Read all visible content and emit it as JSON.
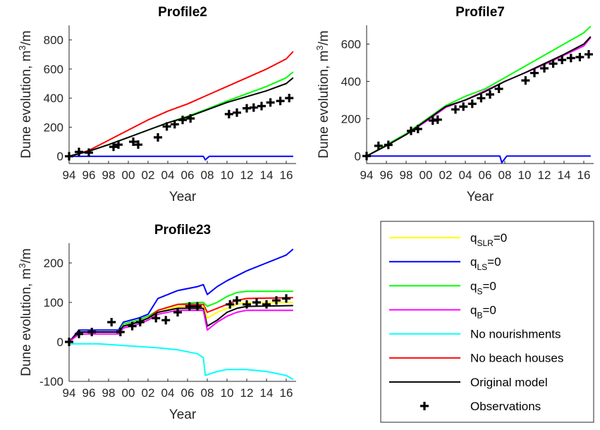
{
  "chart_data": [
    {
      "type": "line",
      "title": "Profile2",
      "xlabel": "Year",
      "ylabel_parts": {
        "main": "Dune evolution, m",
        "sup": "3",
        "tail": "/m"
      },
      "xlim": [
        1994,
        2017
      ],
      "ylim": [
        -50,
        900
      ],
      "yticks": [
        0,
        200,
        400,
        600,
        800
      ],
      "xticks": [
        1994,
        1996,
        1998,
        2000,
        2002,
        2004,
        2006,
        2008,
        2010,
        2012,
        2014,
        2016
      ],
      "xtick_labels": [
        "94",
        "96",
        "98",
        "00",
        "02",
        "04",
        "06",
        "08",
        "10",
        "12",
        "14",
        "16"
      ],
      "series": [
        {
          "key": "sa",
          "color": "#ff0000",
          "x": [
            1994,
            1996,
            1998,
            2000,
            2002,
            2004,
            2006,
            2008,
            2010,
            2012,
            2014,
            2016,
            2016.7
          ],
          "y": [
            0,
            40,
            110,
            180,
            250,
            310,
            360,
            420,
            480,
            540,
            600,
            670,
            720
          ]
        },
        {
          "key": "sb",
          "color": "#00ff00",
          "x": [
            1994,
            1996,
            1998,
            2000,
            2002,
            2004,
            2006,
            2008,
            2010,
            2012,
            2014,
            2016,
            2016.7
          ],
          "y": [
            0,
            35,
            80,
            130,
            180,
            230,
            275,
            325,
            380,
            430,
            480,
            540,
            580
          ]
        },
        {
          "key": "sc",
          "color": "#000000",
          "x": [
            1994,
            1996,
            1998,
            2000,
            2002,
            2004,
            2006,
            2008,
            2010,
            2012,
            2014,
            2016,
            2016.7
          ],
          "y": [
            0,
            35,
            80,
            130,
            180,
            230,
            270,
            320,
            370,
            410,
            450,
            500,
            540
          ]
        },
        {
          "key": "sd",
          "color": "#0000ff",
          "x": [
            1994,
            2000,
            2007.6,
            2007.8,
            2008.2,
            2012,
            2016.7
          ],
          "y": [
            0,
            0,
            0,
            -25,
            0,
            0,
            0
          ]
        }
      ],
      "observations": {
        "x": [
          1994,
          1995,
          1996,
          1998.5,
          1999,
          2000.5,
          2001,
          2003,
          2003.9,
          2004.7,
          2005.5,
          2006.3,
          2010.2,
          2011,
          2012,
          2012.7,
          2013.5,
          2014.4,
          2015.4,
          2016.3
        ],
        "y": [
          0,
          30,
          25,
          65,
          80,
          100,
          80,
          130,
          205,
          220,
          250,
          260,
          290,
          300,
          330,
          335,
          345,
          370,
          380,
          400
        ]
      }
    },
    {
      "type": "line",
      "title": "Profile7",
      "xlabel": "Year",
      "ylabel_parts": {
        "main": "Dune evolution, m",
        "sup": "3",
        "tail": "/m"
      },
      "xlim": [
        1994,
        2017
      ],
      "ylim": [
        -40,
        700
      ],
      "yticks": [
        0,
        200,
        400,
        600
      ],
      "xticks": [
        1994,
        1996,
        1998,
        2000,
        2002,
        2004,
        2006,
        2008,
        2010,
        2012,
        2014,
        2016
      ],
      "xtick_labels": [
        "94",
        "96",
        "98",
        "00",
        "02",
        "04",
        "06",
        "08",
        "10",
        "12",
        "14",
        "16"
      ],
      "series": [
        {
          "key": "sa",
          "color": "#00ff00",
          "x": [
            1994,
            1996,
            1998,
            2000,
            2002,
            2004,
            2006,
            2008,
            2010,
            2012,
            2014,
            2016,
            2016.7
          ],
          "y": [
            0,
            60,
            120,
            195,
            270,
            320,
            360,
            420,
            480,
            540,
            600,
            660,
            695
          ]
        },
        {
          "key": "sb",
          "color": "#ff00ff",
          "x": [
            1994,
            1996,
            1998,
            2000,
            2002,
            2004,
            2006,
            2008,
            2010,
            2012,
            2014,
            2016,
            2016.7
          ],
          "y": [
            0,
            55,
            115,
            185,
            260,
            300,
            350,
            400,
            445,
            490,
            540,
            590,
            635
          ]
        },
        {
          "key": "sc",
          "color": "#000000",
          "x": [
            1994,
            1996,
            1998,
            2000,
            2002,
            2004,
            2006,
            2008,
            2010,
            2012,
            2014,
            2016,
            2016.7
          ],
          "y": [
            0,
            55,
            115,
            190,
            265,
            300,
            345,
            400,
            445,
            495,
            545,
            600,
            640
          ]
        },
        {
          "key": "sd",
          "color": "#0000ff",
          "x": [
            1994,
            2000,
            2007.5,
            2007.7,
            2008.2,
            2012,
            2016.7
          ],
          "y": [
            0,
            0,
            0,
            -35,
            0,
            0,
            0
          ]
        }
      ],
      "observations": {
        "x": [
          1994,
          1995.2,
          1996.2,
          1998.5,
          1999.2,
          2000.7,
          2001.2,
          2003,
          2003.8,
          2004.7,
          2005.6,
          2006.5,
          2007.4,
          2010.1,
          2011,
          2012,
          2012.9,
          2013.8,
          2014.7,
          2015.6,
          2016.5
        ],
        "y": [
          0,
          55,
          60,
          135,
          145,
          190,
          195,
          250,
          265,
          280,
          310,
          330,
          360,
          405,
          445,
          470,
          495,
          515,
          525,
          530,
          545
        ]
      }
    },
    {
      "type": "line",
      "title": "Profile23",
      "xlabel": "Year",
      "ylabel_parts": {
        "main": "Dune evolution, m",
        "sup": "3",
        "tail": "/m"
      },
      "xlim": [
        1994,
        2017
      ],
      "ylim": [
        -100,
        250
      ],
      "yticks": [
        -100,
        0,
        100,
        200
      ],
      "xticks": [
        1994,
        1996,
        1998,
        2000,
        2002,
        2004,
        2006,
        2008,
        2010,
        2012,
        2014,
        2016
      ],
      "xtick_labels": [
        "94",
        "96",
        "98",
        "00",
        "02",
        "04",
        "06",
        "08",
        "10",
        "12",
        "14",
        "16"
      ],
      "series": [
        {
          "key": "sa",
          "color": "#0000ff",
          "x": [
            1994,
            1995,
            1996.5,
            1999,
            1999.5,
            2001,
            2002,
            2003,
            2005,
            2007,
            2007.6,
            2008,
            2009,
            2010,
            2012,
            2014,
            2016,
            2016.7
          ],
          "y": [
            0,
            30,
            30,
            30,
            50,
            60,
            70,
            110,
            130,
            140,
            145,
            120,
            140,
            155,
            180,
            200,
            220,
            235
          ]
        },
        {
          "key": "sb",
          "color": "#00ff00",
          "x": [
            1994,
            1995,
            1996.5,
            1999,
            1999.5,
            2001,
            2002,
            2003,
            2005,
            2007,
            2007.6,
            2008,
            2009,
            2010,
            2011,
            2012,
            2016.7
          ],
          "y": [
            0,
            25,
            25,
            25,
            45,
            55,
            65,
            80,
            95,
            100,
            100,
            90,
            100,
            115,
            125,
            128,
            128
          ]
        },
        {
          "key": "sc",
          "color": "#ff0000",
          "x": [
            1994,
            1995,
            1996.5,
            1999,
            1999.5,
            2001,
            2002,
            2003,
            2005,
            2007,
            2007.6,
            2008,
            2009,
            2010,
            2011,
            2012,
            2016.7
          ],
          "y": [
            0,
            25,
            25,
            25,
            40,
            50,
            60,
            80,
            95,
            95,
            95,
            75,
            85,
            95,
            105,
            110,
            112
          ]
        },
        {
          "key": "sd",
          "color": "#ffff00",
          "x": [
            1994,
            1995,
            1996.5,
            1999,
            1999.5,
            2001,
            2002,
            2003,
            2005,
            2007,
            2007.6,
            2008,
            2009,
            2010,
            2011,
            2012,
            2016.7
          ],
          "y": [
            0,
            25,
            25,
            25,
            40,
            50,
            60,
            75,
            90,
            90,
            90,
            60,
            75,
            85,
            95,
            100,
            100
          ]
        },
        {
          "key": "se",
          "color": "#000000",
          "x": [
            1994,
            1995,
            1996.5,
            1999,
            1999.5,
            2001,
            2002,
            2003,
            2005,
            2007,
            2007.6,
            2008,
            2009,
            2010,
            2011,
            2012,
            2016.7
          ],
          "y": [
            0,
            25,
            25,
            25,
            40,
            50,
            60,
            75,
            85,
            85,
            85,
            40,
            55,
            75,
            85,
            90,
            92
          ]
        },
        {
          "key": "sf",
          "color": "#ff00ff",
          "x": [
            1994,
            1995,
            1996.5,
            1999,
            1999.5,
            2001,
            2002,
            2003,
            2005,
            2007,
            2007.6,
            2008,
            2009,
            2010,
            2011,
            2012,
            2016.7
          ],
          "y": [
            0,
            20,
            20,
            20,
            35,
            45,
            55,
            70,
            80,
            80,
            80,
            30,
            50,
            65,
            75,
            80,
            80
          ]
        },
        {
          "key": "sg",
          "color": "#00ffff",
          "x": [
            1994,
            1997,
            2000,
            2003,
            2005,
            2007,
            2007.6,
            2007.8,
            2009,
            2010,
            2012,
            2014,
            2016,
            2016.7
          ],
          "y": [
            -5,
            -5,
            -10,
            -15,
            -20,
            -30,
            -40,
            -85,
            -75,
            -70,
            -70,
            -75,
            -85,
            -95
          ]
        }
      ],
      "observations": {
        "x": [
          1994,
          1995,
          1996.3,
          1998.3,
          1999.2,
          2000.4,
          2001.2,
          2002.8,
          2003.8,
          2005,
          2006.2,
          2007,
          2010.3,
          2011,
          2012,
          2013,
          2014,
          2015,
          2016
        ],
        "y": [
          0,
          20,
          25,
          50,
          25,
          40,
          50,
          60,
          55,
          75,
          90,
          90,
          95,
          105,
          95,
          100,
          95,
          105,
          110
        ]
      }
    }
  ],
  "legend": {
    "items": [
      {
        "type": "line",
        "color": "#ffff00",
        "base": "q",
        "sub": "SLR",
        "tail": "=0"
      },
      {
        "type": "line",
        "color": "#0000ff",
        "base": "q",
        "sub": "LS",
        "tail": "=0"
      },
      {
        "type": "line",
        "color": "#00ff00",
        "base": "q",
        "sub": "S",
        "tail": "=0"
      },
      {
        "type": "line",
        "color": "#ff00ff",
        "base": "q",
        "sub": "B",
        "tail": "=0"
      },
      {
        "type": "line",
        "color": "#00ffff",
        "base": "No nourishments",
        "sub": "",
        "tail": ""
      },
      {
        "type": "line",
        "color": "#ff0000",
        "base": "No beach houses",
        "sub": "",
        "tail": ""
      },
      {
        "type": "line",
        "color": "#000000",
        "base": "Original model",
        "sub": "",
        "tail": ""
      },
      {
        "type": "marker",
        "color": "#000000",
        "base": "Observations",
        "sub": "",
        "tail": ""
      }
    ]
  }
}
